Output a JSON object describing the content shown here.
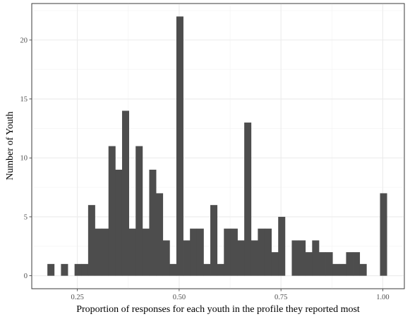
{
  "chart_data": {
    "type": "bar",
    "title": "",
    "xlabel": "Proportion of responses for each youth in the profile they reported most",
    "ylabel": "Number of Youth",
    "xlim": [
      0.138,
      1.053
    ],
    "ylim": [
      -1.1,
      23.1
    ],
    "x_ticks": [
      0.25,
      0.5,
      0.75,
      1.0
    ],
    "x_tick_labels": [
      "0.25",
      "0.50",
      "0.75",
      "1.00"
    ],
    "y_ticks": [
      0,
      5,
      10,
      15,
      20
    ],
    "y_tick_labels": [
      "0",
      "5",
      "10",
      "15",
      "20"
    ],
    "grid": true,
    "bar_color": "#4d4d4d",
    "bins": {
      "start": 0.1764,
      "width": 0.01667,
      "counts": [
        1,
        0,
        1,
        0,
        1,
        1,
        6,
        4,
        4,
        11,
        9,
        14,
        4,
        11,
        4,
        9,
        7,
        3,
        1,
        22,
        3,
        4,
        4,
        1,
        6,
        1,
        4,
        4,
        3,
        13,
        3,
        4,
        4,
        2,
        5,
        0,
        3,
        3,
        2,
        3,
        2,
        2,
        1,
        1,
        2,
        2,
        1,
        0,
        0,
        7
      ]
    }
  }
}
